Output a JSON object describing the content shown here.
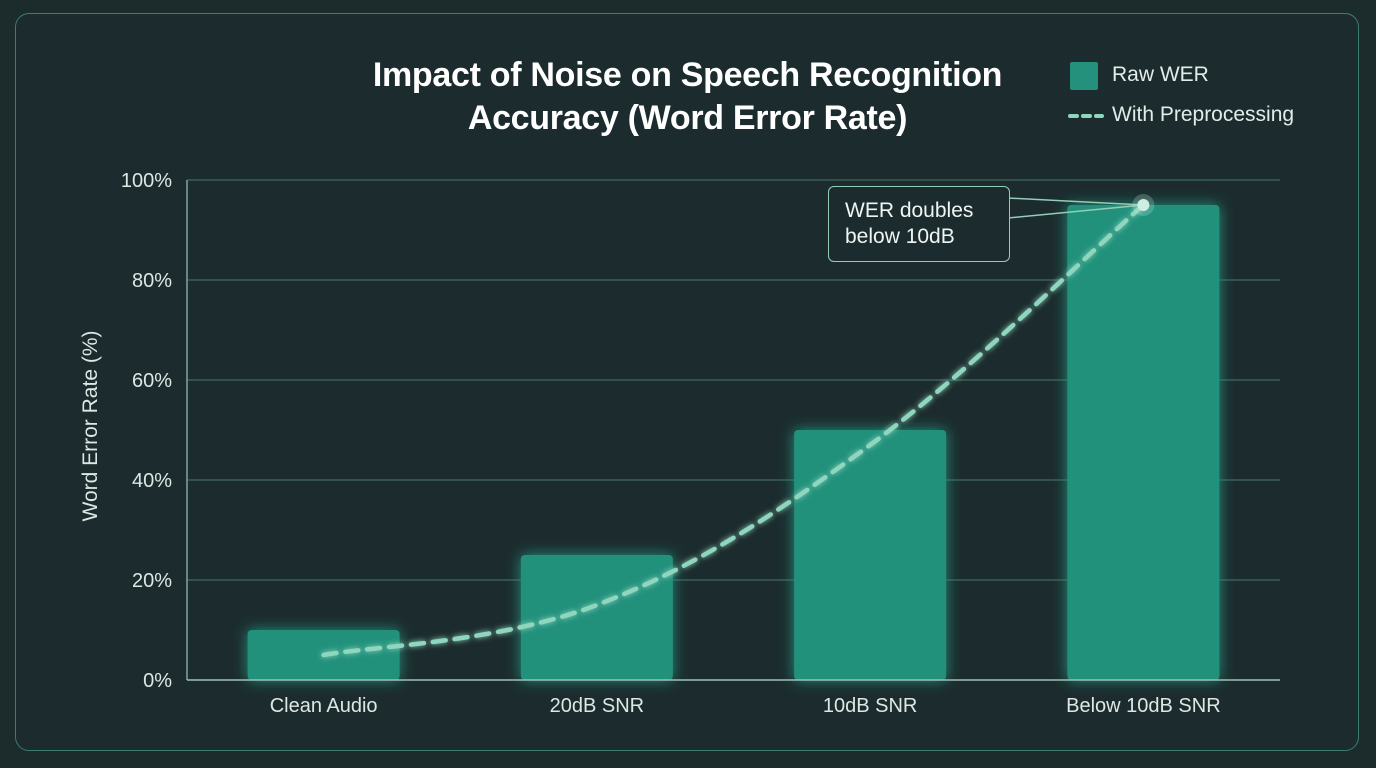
{
  "chart_data": {
    "type": "bar",
    "title_lines": [
      "Impact of Noise on Speech Recognition",
      "Accuracy (Word Error Rate)"
    ],
    "xlabel": "",
    "ylabel": "Word Error Rate (%)",
    "ylim": [
      0,
      100
    ],
    "yticks": [
      0,
      20,
      40,
      60,
      80,
      100
    ],
    "ytick_labels": [
      "0%",
      "20%",
      "40%",
      "60%",
      "80%",
      "100%"
    ],
    "grid": true,
    "legend_position": "top-right",
    "categories": [
      "Clean Audio",
      "20dB SNR",
      "10dB SNR",
      "Below 10dB SNR"
    ],
    "series": [
      {
        "name": "Raw WER",
        "type": "bar",
        "values": [
          10,
          25,
          50,
          95
        ]
      },
      {
        "name": "With Preprocessing",
        "type": "dashed-line",
        "values": [
          5,
          15,
          47,
          95
        ]
      }
    ],
    "annotation": {
      "lines": [
        "WER doubles",
        "below 10dB"
      ],
      "category": "Below 10dB SNR",
      "value": 95
    }
  },
  "colors": {
    "background": "#1c2c2e",
    "bar": "#24917c",
    "line": "#8fd6be",
    "grid": "#3f6a62",
    "text": "#dde7e4"
  }
}
